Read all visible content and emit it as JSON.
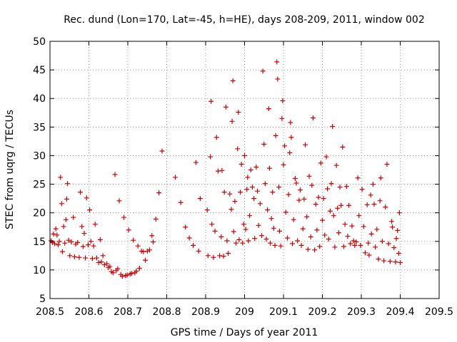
{
  "chart_data": {
    "type": "scatter",
    "title": "Rec. dund (Lon=170, Lat=-45, h=HE), days 208-209, 2011, window 002",
    "xlabel": "GPS time / Days of year 2011",
    "ylabel": "STEC from uqrg / TECUs",
    "xlim": [
      208.5,
      209.5
    ],
    "ylim": [
      5,
      50
    ],
    "xticks": [
      "208.5",
      "208.6",
      "208.7",
      "208.8",
      "208.9",
      "209",
      "209.1",
      "209.2",
      "209.3",
      "209.4",
      "209.5"
    ],
    "yticks": [
      "5",
      "10",
      "15",
      "20",
      "25",
      "30",
      "35",
      "40",
      "45",
      "50"
    ],
    "grid": true,
    "marker": "+",
    "color": "#cc0000",
    "series": [
      {
        "name": "STEC",
        "points": [
          [
            208.503,
            15.1
          ],
          [
            208.506,
            14.8
          ],
          [
            208.509,
            16.3
          ],
          [
            208.512,
            14.6
          ],
          [
            208.515,
            17.2
          ],
          [
            208.518,
            16.1
          ],
          [
            208.521,
            14.4
          ],
          [
            208.524,
            15.0
          ],
          [
            208.527,
            26.2
          ],
          [
            208.53,
            21.6
          ],
          [
            208.532,
            13.2
          ],
          [
            208.535,
            17.6
          ],
          [
            208.538,
            14.7
          ],
          [
            208.541,
            18.8
          ],
          [
            208.543,
            22.4
          ],
          [
            208.545,
            25.1
          ],
          [
            208.548,
            15.2
          ],
          [
            208.551,
            12.5
          ],
          [
            208.555,
            14.9
          ],
          [
            208.56,
            19.2
          ],
          [
            208.563,
            12.3
          ],
          [
            208.566,
            14.5
          ],
          [
            208.571,
            14.8
          ],
          [
            208.575,
            12.2
          ],
          [
            208.578,
            23.6
          ],
          [
            208.582,
            17.6
          ],
          [
            208.585,
            14.1
          ],
          [
            208.588,
            16.4
          ],
          [
            208.591,
            12.1
          ],
          [
            208.594,
            22.6
          ],
          [
            208.598,
            14.4
          ],
          [
            208.602,
            20.5
          ],
          [
            208.605,
            15.0
          ],
          [
            208.609,
            12.0
          ],
          [
            208.612,
            14.2
          ],
          [
            208.616,
            18.0
          ],
          [
            208.62,
            12.1
          ],
          [
            208.625,
            11.3
          ],
          [
            208.629,
            15.3
          ],
          [
            208.632,
            11.4
          ],
          [
            208.636,
            12.5
          ],
          [
            208.64,
            10.9
          ],
          [
            208.646,
            11.1
          ],
          [
            208.65,
            10.4
          ],
          [
            208.654,
            10.6
          ],
          [
            208.658,
            9.7
          ],
          [
            208.662,
            9.5
          ],
          [
            208.667,
            26.7
          ],
          [
            208.67,
            9.9
          ],
          [
            208.674,
            10.2
          ],
          [
            208.678,
            22.1
          ],
          [
            208.682,
            9.2
          ],
          [
            208.686,
            8.9
          ],
          [
            208.69,
            19.2
          ],
          [
            208.694,
            9.0
          ],
          [
            208.698,
            9.1
          ],
          [
            208.702,
            17.0
          ],
          [
            208.706,
            9.3
          ],
          [
            208.71,
            9.4
          ],
          [
            208.714,
            15.2
          ],
          [
            208.718,
            9.5
          ],
          [
            208.722,
            9.8
          ],
          [
            208.726,
            14.2
          ],
          [
            208.73,
            10.3
          ],
          [
            208.735,
            13.3
          ],
          [
            208.74,
            13.2
          ],
          [
            208.745,
            11.7
          ],
          [
            208.75,
            13.3
          ],
          [
            208.756,
            13.5
          ],
          [
            208.762,
            16.0
          ],
          [
            208.765,
            14.9
          ],
          [
            208.772,
            18.9
          ],
          [
            208.78,
            23.5
          ],
          [
            208.788,
            30.8
          ],
          [
            208.822,
            26.2
          ],
          [
            208.836,
            21.8
          ],
          [
            208.848,
            17.5
          ],
          [
            208.858,
            15.6
          ],
          [
            208.868,
            14.3
          ],
          [
            208.875,
            28.8
          ],
          [
            208.882,
            13.3
          ],
          [
            208.886,
            22.5
          ],
          [
            208.904,
            20.5
          ],
          [
            208.906,
            12.5
          ],
          [
            208.912,
            29.8
          ],
          [
            208.914,
            39.5
          ],
          [
            208.916,
            18.0
          ],
          [
            208.92,
            12.2
          ],
          [
            208.924,
            16.8
          ],
          [
            208.928,
            33.2
          ],
          [
            208.932,
            27.3
          ],
          [
            208.936,
            12.5
          ],
          [
            208.94,
            15.8
          ],
          [
            208.942,
            27.4
          ],
          [
            208.946,
            12.4
          ],
          [
            208.948,
            23.6
          ],
          [
            208.952,
            38.5
          ],
          [
            208.955,
            15.1
          ],
          [
            208.958,
            12.9
          ],
          [
            208.962,
            23.3
          ],
          [
            208.966,
            20.6
          ],
          [
            208.968,
            36.0
          ],
          [
            208.97,
            43.1
          ],
          [
            208.972,
            16.7
          ],
          [
            208.975,
            22.0
          ],
          [
            208.978,
            14.7
          ],
          [
            208.982,
            31.2
          ],
          [
            208.984,
            37.6
          ],
          [
            208.986,
            15.3
          ],
          [
            208.989,
            23.6
          ],
          [
            208.992,
            28.5
          ],
          [
            208.995,
            14.7
          ],
          [
            208.998,
            18.0
          ],
          [
            209.0,
            30.0
          ],
          [
            209.003,
            17.1
          ],
          [
            209.006,
            24.1
          ],
          [
            209.008,
            26.2
          ],
          [
            209.01,
            15.1
          ],
          [
            209.013,
            19.5
          ],
          [
            209.016,
            27.5
          ],
          [
            209.02,
            24.5
          ],
          [
            209.024,
            22.5
          ],
          [
            209.026,
            15.5
          ],
          [
            209.03,
            28.0
          ],
          [
            209.033,
            23.8
          ],
          [
            209.036,
            17.8
          ],
          [
            209.04,
            21.6
          ],
          [
            209.044,
            16.0
          ],
          [
            209.047,
            44.8
          ],
          [
            209.05,
            32.0
          ],
          [
            209.053,
            25.1
          ],
          [
            209.056,
            15.4
          ],
          [
            209.059,
            20.5
          ],
          [
            209.062,
            38.2
          ],
          [
            209.064,
            27.8
          ],
          [
            209.066,
            14.7
          ],
          [
            209.069,
            19.0
          ],
          [
            209.072,
            23.6
          ],
          [
            209.075,
            17.3
          ],
          [
            209.078,
            14.3
          ],
          [
            209.08,
            33.5
          ],
          [
            209.083,
            46.4
          ],
          [
            209.085,
            43.4
          ],
          [
            209.088,
            24.5
          ],
          [
            209.09,
            16.8
          ],
          [
            209.093,
            14.2
          ],
          [
            209.096,
            36.5
          ],
          [
            209.098,
            39.6
          ],
          [
            209.1,
            28.4
          ],
          [
            209.103,
            31.7
          ],
          [
            209.106,
            20.1
          ],
          [
            209.11,
            15.6
          ],
          [
            209.113,
            23.2
          ],
          [
            209.116,
            30.5
          ],
          [
            209.118,
            35.8
          ],
          [
            209.12,
            33.2
          ],
          [
            209.123,
            14.6
          ],
          [
            209.126,
            18.8
          ],
          [
            209.13,
            26.0
          ],
          [
            209.133,
            25.2
          ],
          [
            209.136,
            15.1
          ],
          [
            209.14,
            22.2
          ],
          [
            209.143,
            24.0
          ],
          [
            209.146,
            14.3
          ],
          [
            209.15,
            17.2
          ],
          [
            209.153,
            22.4
          ],
          [
            209.156,
            31.9
          ],
          [
            209.16,
            19.3
          ],
          [
            209.163,
            13.6
          ],
          [
            209.166,
            26.4
          ],
          [
            209.17,
            15.8
          ],
          [
            209.173,
            24.8
          ],
          [
            209.176,
            36.6
          ],
          [
            209.18,
            13.5
          ],
          [
            209.183,
            21.5
          ],
          [
            209.186,
            17.0
          ],
          [
            209.19,
            22.7
          ],
          [
            209.193,
            14.1
          ],
          [
            209.196,
            28.7
          ],
          [
            209.2,
            18.7
          ],
          [
            209.203,
            22.5
          ],
          [
            209.206,
            16.1
          ],
          [
            209.21,
            29.8
          ],
          [
            209.213,
            24.2
          ],
          [
            209.216,
            15.4
          ],
          [
            209.22,
            20.3
          ],
          [
            209.223,
            25.1
          ],
          [
            209.226,
            35.1
          ],
          [
            209.229,
            19.5
          ],
          [
            209.232,
            14.0
          ],
          [
            209.236,
            28.3
          ],
          [
            209.239,
            20.8
          ],
          [
            209.242,
            16.5
          ],
          [
            209.245,
            24.5
          ],
          [
            209.248,
            21.3
          ],
          [
            209.252,
            31.5
          ],
          [
            209.255,
            14.1
          ],
          [
            209.258,
            18.0
          ],
          [
            209.262,
            24.6
          ],
          [
            209.265,
            15.9
          ],
          [
            209.268,
            21.3
          ],
          [
            209.272,
            14.6
          ],
          [
            209.276,
            17.7
          ],
          [
            209.28,
            15.1
          ],
          [
            209.283,
            14.3
          ],
          [
            209.287,
            14.9
          ],
          [
            209.291,
            26.1
          ],
          [
            209.294,
            19.5
          ],
          [
            209.298,
            14.3
          ],
          [
            209.302,
            24.1
          ],
          [
            209.306,
            17.6
          ],
          [
            209.31,
            13.0
          ],
          [
            209.315,
            21.4
          ],
          [
            209.318,
            14.7
          ],
          [
            209.32,
            12.6
          ],
          [
            209.324,
            23.1
          ],
          [
            209.326,
            16.3
          ],
          [
            209.33,
            25.0
          ],
          [
            209.333,
            21.5
          ],
          [
            209.336,
            14.0
          ],
          [
            209.34,
            17.1
          ],
          [
            209.344,
            11.9
          ],
          [
            209.348,
            22.1
          ],
          [
            209.35,
            26.1
          ],
          [
            209.354,
            15.0
          ],
          [
            209.358,
            11.6
          ],
          [
            209.362,
            21.0
          ],
          [
            209.366,
            28.5
          ],
          [
            209.37,
            14.6
          ],
          [
            209.374,
            11.5
          ],
          [
            209.378,
            18.5
          ],
          [
            209.38,
            17.5
          ],
          [
            209.384,
            13.9
          ],
          [
            209.388,
            11.4
          ],
          [
            209.39,
            15.5
          ],
          [
            209.393,
            16.9
          ],
          [
            209.396,
            12.9
          ],
          [
            209.398,
            20.0
          ],
          [
            209.4,
            11.3
          ]
        ]
      }
    ]
  }
}
